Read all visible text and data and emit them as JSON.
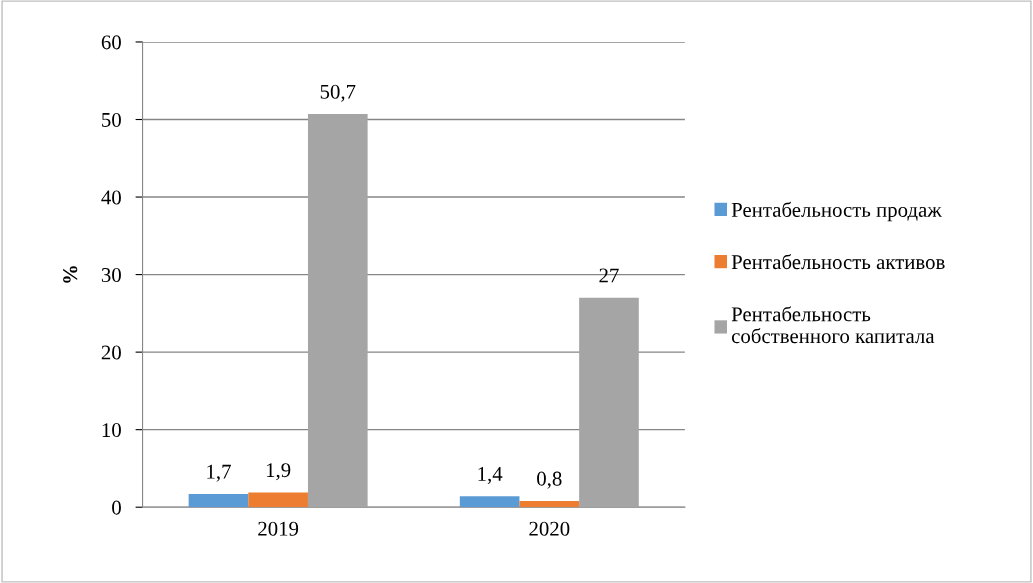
{
  "chart_data": {
    "type": "bar",
    "ylabel": "%",
    "categories": [
      "2019",
      "2020"
    ],
    "series": [
      {
        "name": "Рентабельность продаж",
        "color": "#5b9bd5",
        "values": [
          1.7,
          1.4
        ],
        "value_labels": [
          "1,7",
          "1,4"
        ]
      },
      {
        "name": "Рентабельность активов",
        "color": "#ed7d31",
        "values": [
          1.9,
          0.8
        ],
        "value_labels": [
          "1,9",
          "0,8"
        ]
      },
      {
        "name": "Рентабельность\nсобственного капитала",
        "color": "#a5a5a5",
        "values": [
          50.7,
          27
        ],
        "value_labels": [
          "50,7",
          "27"
        ]
      }
    ],
    "ylim": [
      0,
      60
    ],
    "yticks": [
      0,
      10,
      20,
      30,
      40,
      50,
      60
    ],
    "grid": "y",
    "legend": "right"
  }
}
